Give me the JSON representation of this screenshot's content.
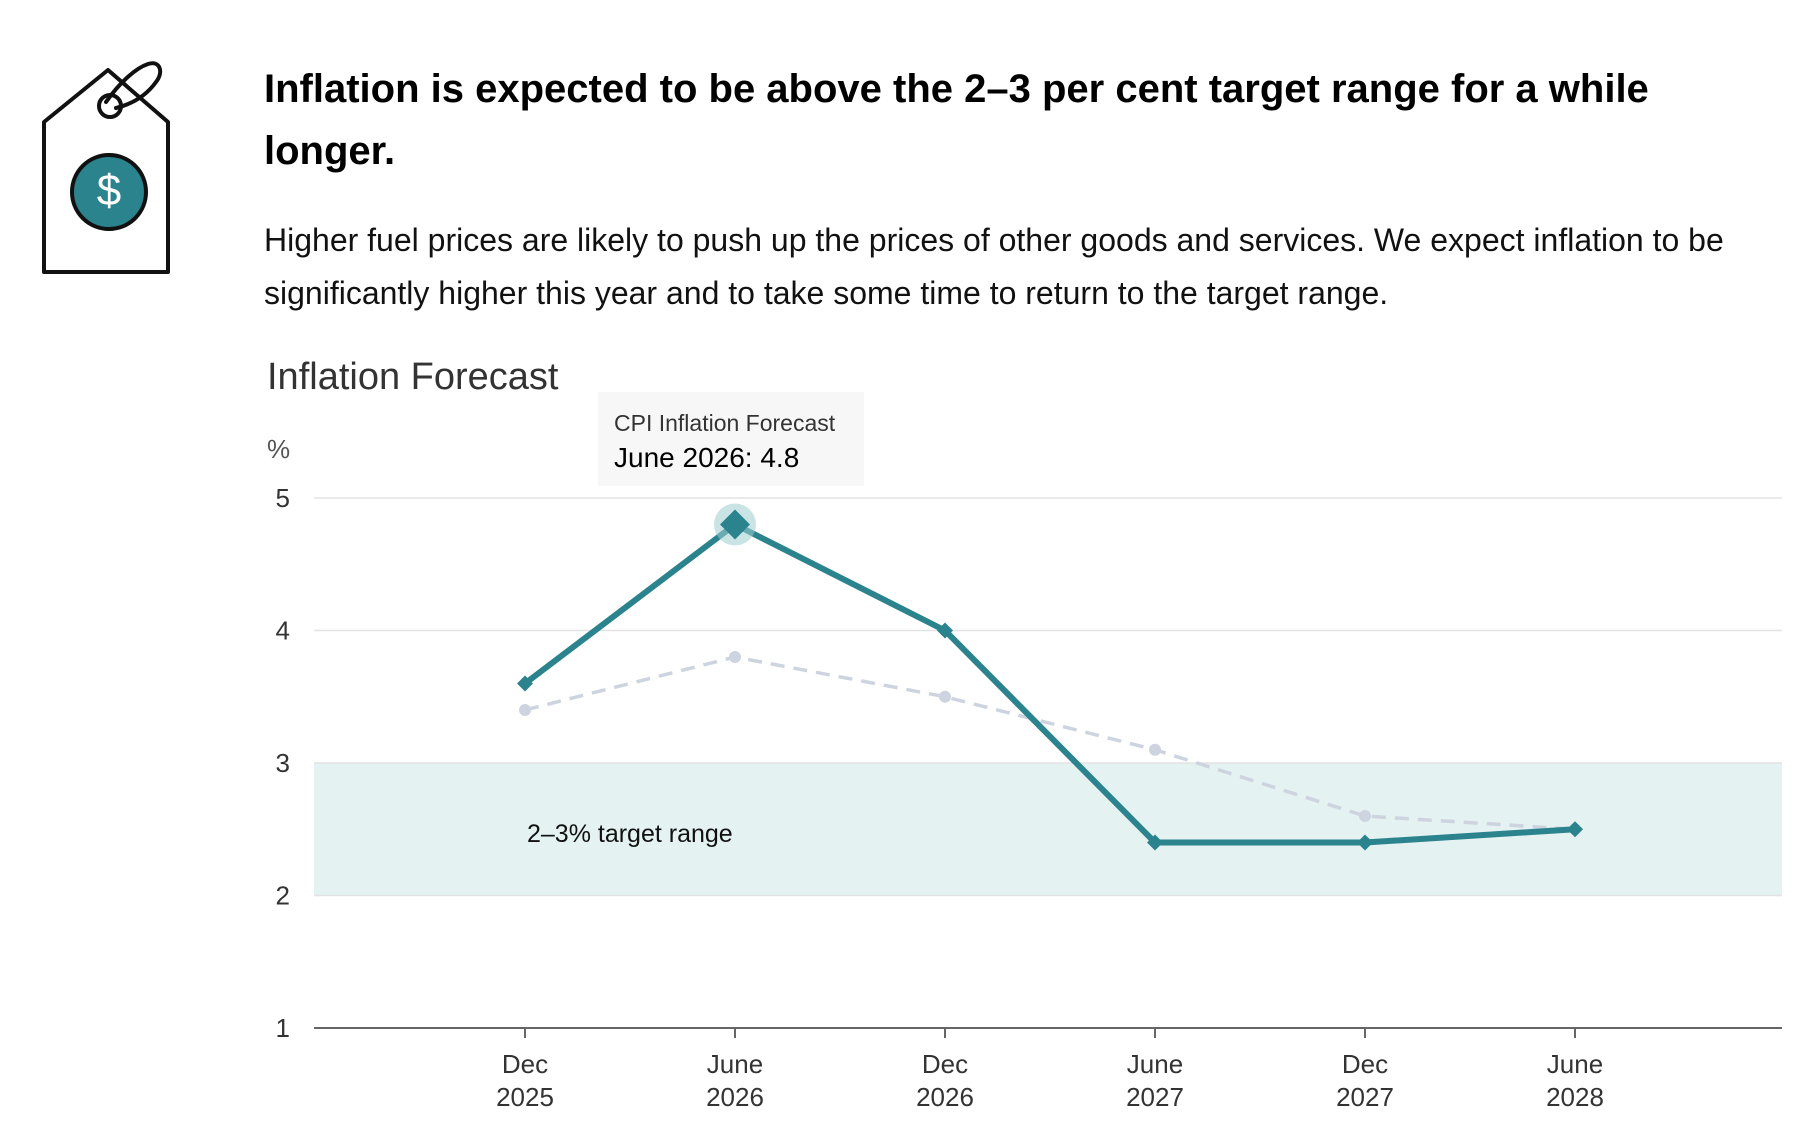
{
  "header": {
    "headline": "Inflation is expected to be above the 2–3 per cent target range for a while longer.",
    "intro": "Higher fuel prices are likely to push up the prices of other goods and services. We expect inflation to be significantly higher this year and to take some time to return to the target range.",
    "icon": "price-tag-dollar-icon"
  },
  "colors": {
    "primary_series": "#2a838d",
    "previous_series": "#cdd4e0",
    "target_band": "#e4f2f2",
    "axis": "#666666",
    "grid": "#e3e3e3",
    "highlight_halo": "#9fcdd2"
  },
  "tooltip": {
    "series": "CPI Inflation Forecast",
    "value": "June 2026: 4.8"
  },
  "chart_data": {
    "type": "line",
    "title": "Inflation Forecast",
    "ylabel": "%",
    "ylim": [
      1,
      5
    ],
    "yticks": [
      "1",
      "2",
      "3",
      "4",
      "5"
    ],
    "categories": [
      [
        "Dec",
        "2025"
      ],
      [
        "June",
        "2026"
      ],
      [
        "Dec",
        "2026"
      ],
      [
        "June",
        "2027"
      ],
      [
        "Dec",
        "2027"
      ],
      [
        "June",
        "2028"
      ]
    ],
    "series": [
      {
        "name": "CPI Inflation Forecast",
        "style": "solid",
        "values": [
          3.6,
          4.8,
          4.0,
          2.4,
          2.4,
          2.5
        ]
      },
      {
        "style": "dashed",
        "values": [
          3.4,
          3.8,
          3.5,
          3.1,
          2.6,
          2.5
        ]
      }
    ],
    "highlighted_point": {
      "series_index": 0,
      "category_index": 1
    },
    "band": {
      "from": 2,
      "to": 3,
      "label": "2–3% target range"
    },
    "grid": true
  }
}
